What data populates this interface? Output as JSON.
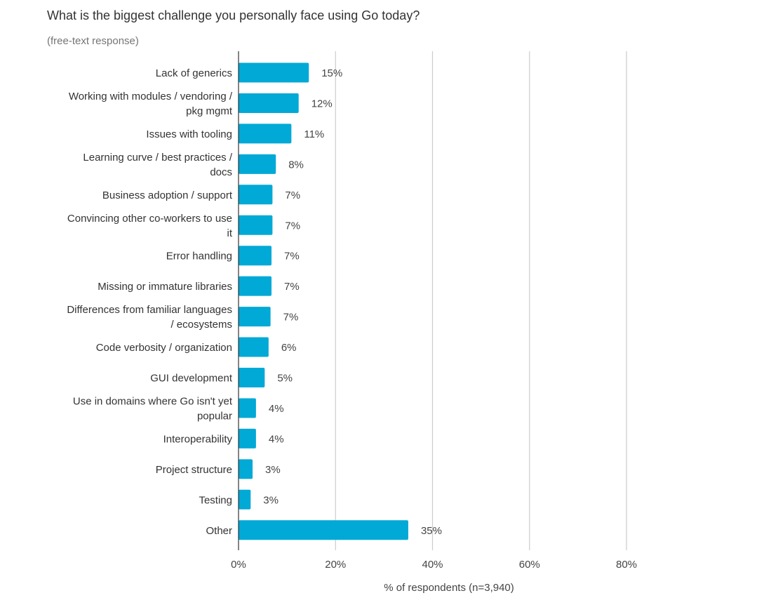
{
  "title": "What is the biggest challenge you personally face using Go today?",
  "subtitle": "(free-text response)",
  "colors": {
    "bar": "#00A9D6",
    "grid": "#cccccc",
    "axis": "#333333"
  },
  "chart_data": {
    "type": "bar",
    "orientation": "horizontal",
    "title": "What is the biggest challenge you personally face using Go today?",
    "subtitle": "(free-text response)",
    "xlabel": "% of respondents (n=3,940)",
    "ylabel": "",
    "xlim": [
      0,
      80
    ],
    "xticks": [
      "0%",
      "20%",
      "40%",
      "60%",
      "80%"
    ],
    "grid": true,
    "categories": [
      [
        "Lack of generics"
      ],
      [
        "Working with modules / vendoring /",
        "pkg mgmt"
      ],
      [
        "Issues with tooling"
      ],
      [
        "Learning curve / best practices /",
        "docs"
      ],
      [
        "Business adoption / support"
      ],
      [
        "Convincing other co-workers to use",
        "it"
      ],
      [
        "Error handling"
      ],
      [
        "Missing or immature libraries"
      ],
      [
        "Differences from familiar languages",
        "/ ecosystems"
      ],
      [
        "Code verbosity / organization"
      ],
      [
        "GUI development"
      ],
      [
        "Use in domains where Go isn't yet",
        "popular"
      ],
      [
        "Interoperability"
      ],
      [
        "Project structure"
      ],
      [
        "Testing"
      ],
      [
        "Other"
      ]
    ],
    "values": [
      14.5,
      12.4,
      10.9,
      7.7,
      7.0,
      7.0,
      6.8,
      6.8,
      6.6,
      6.2,
      5.4,
      3.6,
      3.6,
      2.9,
      2.5,
      35.0
    ],
    "value_labels": [
      "15%",
      "12%",
      "11%",
      "8%",
      "7%",
      "7%",
      "7%",
      "7%",
      "7%",
      "6%",
      "5%",
      "4%",
      "4%",
      "3%",
      "3%",
      "35%"
    ]
  }
}
